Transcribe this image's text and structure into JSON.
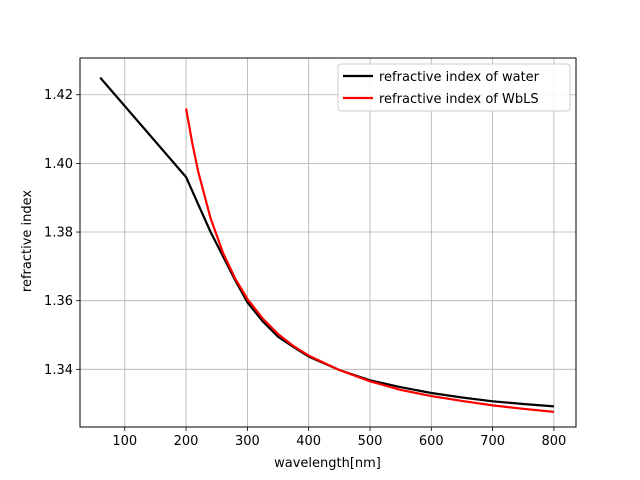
{
  "chart_data": {
    "type": "line",
    "xlabel": "wavelength[nm]",
    "ylabel": "refractive index",
    "xlim": [
      27,
      836
    ],
    "ylim": [
      1.3232,
      1.4307
    ],
    "xticks": [
      100,
      200,
      300,
      400,
      500,
      600,
      700,
      800
    ],
    "xtick_labels": [
      "100",
      "200",
      "300",
      "400",
      "500",
      "600",
      "700",
      "800"
    ],
    "yticks": [
      1.34,
      1.36,
      1.38,
      1.4,
      1.42
    ],
    "ytick_labels": [
      "1.34",
      "1.36",
      "1.38",
      "1.40",
      "1.42"
    ],
    "grid": true,
    "legend_position": "top-right",
    "series": [
      {
        "name": " refractive index of  water",
        "color": "#000000",
        "x": [
          60,
          200,
          220,
          240,
          260,
          280,
          300,
          325,
          350,
          375,
          400,
          450,
          500,
          550,
          600,
          650,
          700,
          750,
          800
        ],
        "y": [
          1.425,
          1.396,
          1.388,
          1.38,
          1.373,
          1.366,
          1.3595,
          1.354,
          1.3495,
          1.3465,
          1.3437,
          1.3398,
          1.3368,
          1.3348,
          1.3331,
          1.3318,
          1.3307,
          1.3299,
          1.3292
        ]
      },
      {
        "name": " refractive index of  WbLS",
        "color": "#ff0000",
        "x": [
          200,
          210,
          220,
          240,
          260,
          280,
          300,
          325,
          350,
          375,
          400,
          450,
          500,
          550,
          600,
          650,
          700,
          750,
          800
        ],
        "y": [
          1.416,
          1.406,
          1.3975,
          1.384,
          1.374,
          1.3665,
          1.3605,
          1.3548,
          1.3503,
          1.3468,
          1.344,
          1.3398,
          1.3365,
          1.334,
          1.3322,
          1.3308,
          1.3295,
          1.3285,
          1.3276
        ]
      }
    ]
  }
}
